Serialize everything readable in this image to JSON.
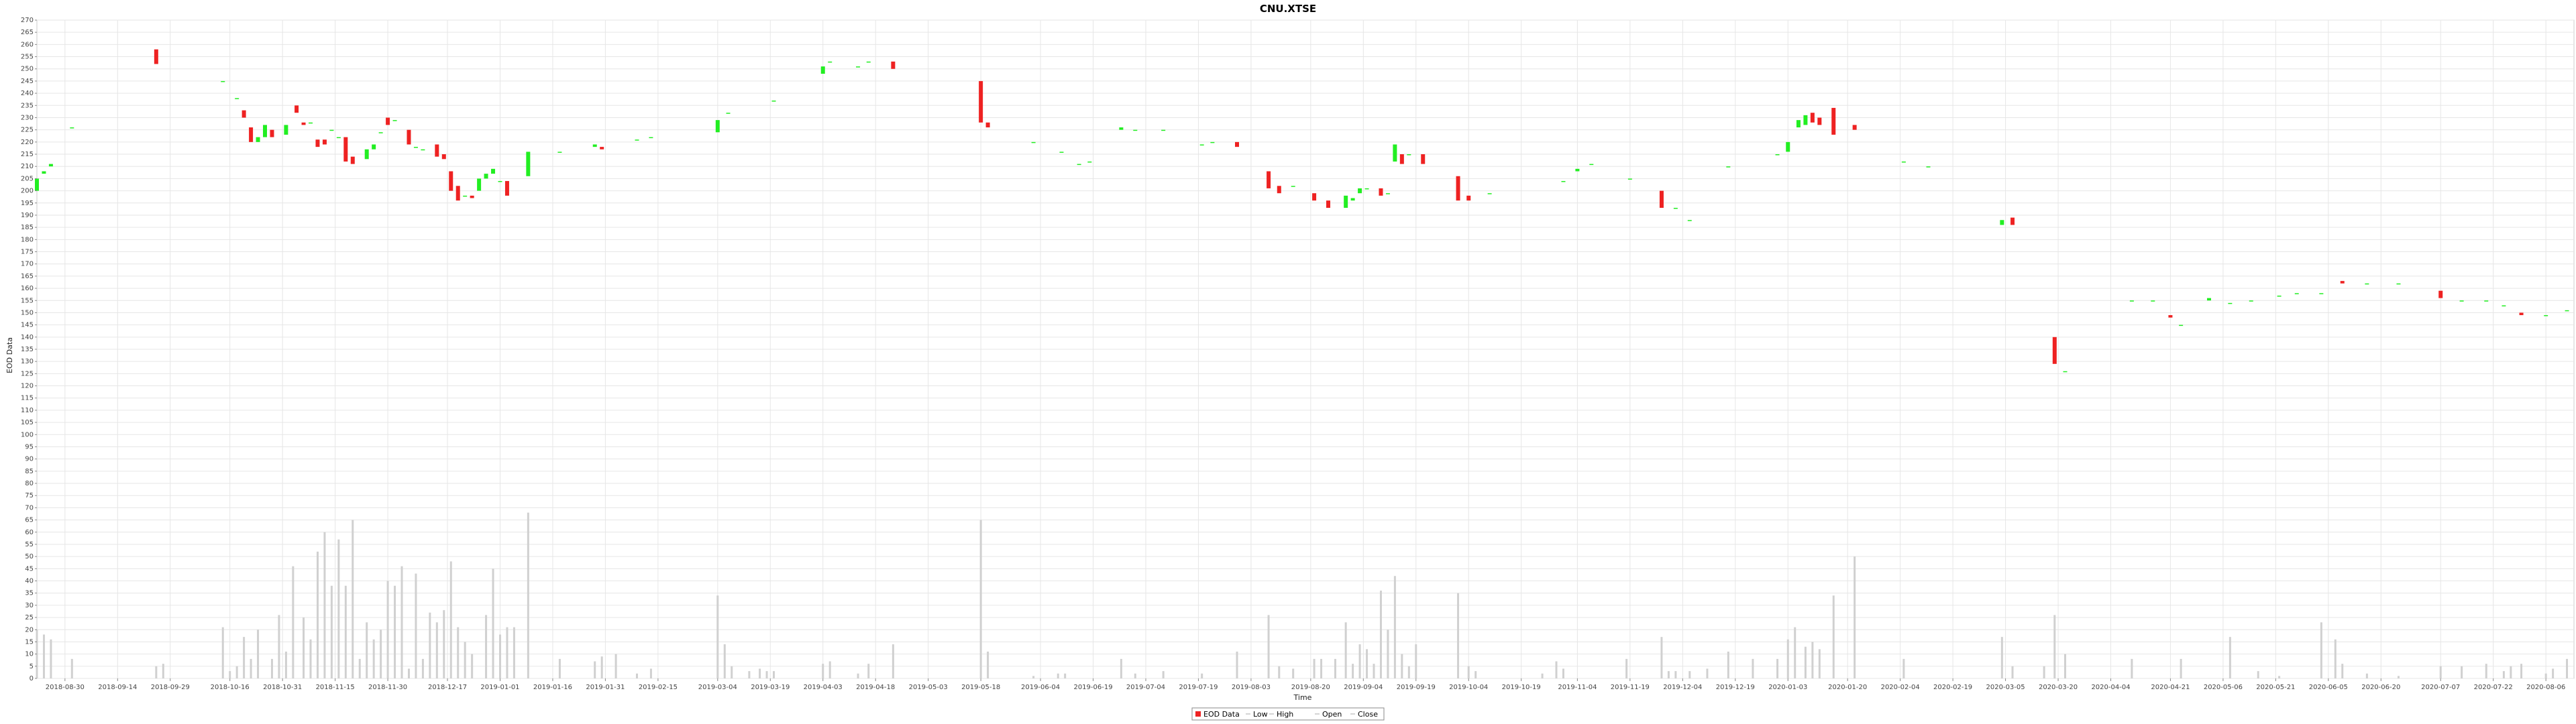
{
  "chart_data": {
    "type": "candlestick",
    "title": "CNU.XTSE",
    "xlabel": "Time",
    "ylabel": "EOD Data",
    "ylim": [
      0,
      270
    ],
    "ytick_step": 5,
    "xlim": [
      "2018-08-22",
      "2020-08-14"
    ],
    "x_ticks": [
      "2018-08-30",
      "2018-09-14",
      "2018-09-29",
      "2018-10-16",
      "2018-10-31",
      "2018-11-15",
      "2018-11-30",
      "2018-12-17",
      "2019-01-01",
      "2019-01-16",
      "2019-01-31",
      "2019-02-15",
      "2019-03-04",
      "2019-03-19",
      "2019-04-03",
      "2019-04-18",
      "2019-05-03",
      "2019-05-18",
      "2019-06-04",
      "2019-06-19",
      "2019-07-04",
      "2019-07-19",
      "2019-08-03",
      "2019-08-20",
      "2019-09-04",
      "2019-09-19",
      "2019-10-04",
      "2019-10-19",
      "2019-11-04",
      "2019-11-19",
      "2019-12-04",
      "2019-12-19",
      "2020-01-03",
      "2020-01-20",
      "2020-02-04",
      "2020-02-19",
      "2020-03-05",
      "2020-03-20",
      "2020-04-04",
      "2020-04-21",
      "2020-05-06",
      "2020-05-21",
      "2020-06-05",
      "2020-06-20",
      "2020-07-07",
      "2020-07-22",
      "2020-08-06"
    ],
    "grid": true,
    "colors": {
      "up": "#22ee22",
      "down": "#ee2222",
      "volume": "#d0d0d0",
      "grid": "#e6e6e6"
    },
    "legend": {
      "position": "bottom-center",
      "entries": [
        "EOD Data",
        "Low",
        "High",
        "Open",
        "Close"
      ]
    },
    "candles": [
      [
        "2018-08-22",
        200,
        205
      ],
      [
        "2018-08-24",
        207,
        208
      ],
      [
        "2018-08-26",
        210,
        211
      ],
      [
        "2018-09-01",
        226,
        226
      ],
      [
        "2018-09-25",
        258,
        252
      ],
      [
        "2018-10-14",
        245,
        245
      ],
      [
        "2018-10-18",
        238,
        238
      ],
      [
        "2018-10-20",
        233,
        230
      ],
      [
        "2018-10-22",
        226,
        220
      ],
      [
        "2018-10-24",
        220,
        222
      ],
      [
        "2018-10-26",
        222,
        227
      ],
      [
        "2018-10-28",
        225,
        222
      ],
      [
        "2018-11-01",
        223,
        227
      ],
      [
        "2018-11-04",
        235,
        232
      ],
      [
        "2018-11-06",
        228,
        227
      ],
      [
        "2018-11-08",
        228,
        228
      ],
      [
        "2018-11-10",
        221,
        218
      ],
      [
        "2018-11-12",
        221,
        219
      ],
      [
        "2018-11-14",
        225,
        225
      ],
      [
        "2018-11-16",
        222,
        222
      ],
      [
        "2018-11-18",
        222,
        212
      ],
      [
        "2018-11-20",
        214,
        211
      ],
      [
        "2018-11-24",
        213,
        217
      ],
      [
        "2018-11-26",
        217,
        219
      ],
      [
        "2018-11-28",
        224,
        224
      ],
      [
        "2018-11-30",
        230,
        227
      ],
      [
        "2018-12-02",
        229,
        229
      ],
      [
        "2018-12-06",
        225,
        219
      ],
      [
        "2018-12-08",
        218,
        218
      ],
      [
        "2018-12-10",
        217,
        217
      ],
      [
        "2018-12-14",
        219,
        214
      ],
      [
        "2018-12-16",
        215,
        213
      ],
      [
        "2018-12-18",
        208,
        200
      ],
      [
        "2018-12-20",
        202,
        196
      ],
      [
        "2018-12-22",
        198,
        198
      ],
      [
        "2018-12-24",
        198,
        197
      ],
      [
        "2018-12-26",
        200,
        205
      ],
      [
        "2018-12-28",
        205,
        207
      ],
      [
        "2018-12-30",
        207,
        209
      ],
      [
        "2019-01-01",
        204,
        204
      ],
      [
        "2019-01-03",
        204,
        198
      ],
      [
        "2019-01-09",
        206,
        216
      ],
      [
        "2019-01-18",
        216,
        216
      ],
      [
        "2019-01-28",
        218,
        219
      ],
      [
        "2019-01-30",
        218,
        217
      ],
      [
        "2019-02-09",
        221,
        221
      ],
      [
        "2019-02-13",
        222,
        222
      ],
      [
        "2019-03-04",
        224,
        229
      ],
      [
        "2019-03-07",
        232,
        232
      ],
      [
        "2019-03-20",
        237,
        237
      ],
      [
        "2019-04-03",
        248,
        251
      ],
      [
        "2019-04-05",
        253,
        253
      ],
      [
        "2019-04-13",
        251,
        251
      ],
      [
        "2019-04-16",
        253,
        253
      ],
      [
        "2019-04-23",
        253,
        250
      ],
      [
        "2019-05-18",
        245,
        228
      ],
      [
        "2019-05-20",
        228,
        226
      ],
      [
        "2019-06-02",
        220,
        220
      ],
      [
        "2019-06-10",
        216,
        216
      ],
      [
        "2019-06-15",
        211,
        211
      ],
      [
        "2019-06-18",
        212,
        212
      ],
      [
        "2019-06-27",
        225,
        226
      ],
      [
        "2019-07-01",
        225,
        225
      ],
      [
        "2019-07-09",
        225,
        225
      ],
      [
        "2019-07-20",
        219,
        219
      ],
      [
        "2019-07-23",
        220,
        220
      ],
      [
        "2019-07-30",
        220,
        218
      ],
      [
        "2019-08-08",
        208,
        201
      ],
      [
        "2019-08-11",
        202,
        199
      ],
      [
        "2019-08-15",
        202,
        202
      ],
      [
        "2019-08-21",
        199,
        196
      ],
      [
        "2019-08-25",
        196,
        193
      ],
      [
        "2019-08-30",
        193,
        198
      ],
      [
        "2019-09-01",
        196,
        197
      ],
      [
        "2019-09-03",
        199,
        201
      ],
      [
        "2019-09-05",
        201,
        201
      ],
      [
        "2019-09-09",
        201,
        198
      ],
      [
        "2019-09-11",
        199,
        199
      ],
      [
        "2019-09-13",
        212,
        219
      ],
      [
        "2019-09-15",
        215,
        211
      ],
      [
        "2019-09-17",
        215,
        215
      ],
      [
        "2019-09-21",
        215,
        211
      ],
      [
        "2019-10-01",
        206,
        196
      ],
      [
        "2019-10-04",
        198,
        196
      ],
      [
        "2019-10-10",
        199,
        199
      ],
      [
        "2019-10-31",
        204,
        204
      ],
      [
        "2019-11-04",
        208,
        209
      ],
      [
        "2019-11-08",
        211,
        211
      ],
      [
        "2019-11-19",
        205,
        205
      ],
      [
        "2019-11-28",
        200,
        193
      ],
      [
        "2019-12-02",
        193,
        193
      ],
      [
        "2019-12-06",
        188,
        188
      ],
      [
        "2019-12-17",
        210,
        210
      ],
      [
        "2019-12-31",
        215,
        215
      ],
      [
        "2020-01-03",
        216,
        220
      ],
      [
        "2020-01-06",
        226,
        229
      ],
      [
        "2020-01-08",
        227,
        231
      ],
      [
        "2020-01-10",
        232,
        228
      ],
      [
        "2020-01-12",
        230,
        227
      ],
      [
        "2020-01-16",
        234,
        223
      ],
      [
        "2020-01-22",
        227,
        225
      ],
      [
        "2020-02-05",
        212,
        212
      ],
      [
        "2020-02-12",
        210,
        210
      ],
      [
        "2020-03-04",
        186,
        188
      ],
      [
        "2020-03-07",
        189,
        186
      ],
      [
        "2020-03-19",
        140,
        129
      ],
      [
        "2020-03-22",
        126,
        126
      ],
      [
        "2020-04-10",
        155,
        155
      ],
      [
        "2020-04-16",
        155,
        155
      ],
      [
        "2020-04-21",
        149,
        148
      ],
      [
        "2020-04-24",
        145,
        145
      ],
      [
        "2020-05-02",
        155,
        156
      ],
      [
        "2020-05-08",
        154,
        154
      ],
      [
        "2020-05-14",
        155,
        155
      ],
      [
        "2020-05-22",
        157,
        157
      ],
      [
        "2020-05-27",
        158,
        158
      ],
      [
        "2020-06-03",
        158,
        158
      ],
      [
        "2020-06-09",
        163,
        162
      ],
      [
        "2020-06-16",
        162,
        162
      ],
      [
        "2020-06-25",
        162,
        162
      ],
      [
        "2020-07-07",
        159,
        156
      ],
      [
        "2020-07-13",
        155,
        155
      ],
      [
        "2020-07-20",
        155,
        155
      ],
      [
        "2020-07-25",
        153,
        153
      ],
      [
        "2020-07-30",
        150,
        149
      ],
      [
        "2020-08-06",
        149,
        149
      ],
      [
        "2020-08-12",
        151,
        151
      ]
    ],
    "volume": [
      [
        "2018-08-22",
        20
      ],
      [
        "2018-08-24",
        18
      ],
      [
        "2018-08-26",
        16
      ],
      [
        "2018-09-01",
        8
      ],
      [
        "2018-09-25",
        5
      ],
      [
        "2018-09-27",
        6
      ],
      [
        "2018-10-14",
        21
      ],
      [
        "2018-10-16",
        3
      ],
      [
        "2018-10-18",
        5
      ],
      [
        "2018-10-20",
        17
      ],
      [
        "2018-10-22",
        8
      ],
      [
        "2018-10-24",
        20
      ],
      [
        "2018-10-28",
        8
      ],
      [
        "2018-10-30",
        26
      ],
      [
        "2018-11-01",
        11
      ],
      [
        "2018-11-03",
        46
      ],
      [
        "2018-11-06",
        25
      ],
      [
        "2018-11-08",
        16
      ],
      [
        "2018-11-10",
        52
      ],
      [
        "2018-11-12",
        60
      ],
      [
        "2018-11-14",
        38
      ],
      [
        "2018-11-16",
        57
      ],
      [
        "2018-11-18",
        38
      ],
      [
        "2018-11-20",
        65
      ],
      [
        "2018-11-22",
        8
      ],
      [
        "2018-11-24",
        23
      ],
      [
        "2018-11-26",
        16
      ],
      [
        "2018-11-28",
        20
      ],
      [
        "2018-11-30",
        40
      ],
      [
        "2018-12-02",
        38
      ],
      [
        "2018-12-04",
        46
      ],
      [
        "2018-12-06",
        4
      ],
      [
        "2018-12-08",
        43
      ],
      [
        "2018-12-10",
        8
      ],
      [
        "2018-12-12",
        27
      ],
      [
        "2018-12-14",
        23
      ],
      [
        "2018-12-16",
        28
      ],
      [
        "2018-12-18",
        48
      ],
      [
        "2018-12-20",
        21
      ],
      [
        "2018-12-22",
        15
      ],
      [
        "2018-12-24",
        10
      ],
      [
        "2018-12-28",
        26
      ],
      [
        "2018-12-30",
        45
      ],
      [
        "2019-01-01",
        18
      ],
      [
        "2019-01-03",
        21
      ],
      [
        "2019-01-05",
        21
      ],
      [
        "2019-01-09",
        68
      ],
      [
        "2019-01-18",
        8
      ],
      [
        "2019-01-28",
        7
      ],
      [
        "2019-01-30",
        9
      ],
      [
        "2019-02-03",
        10
      ],
      [
        "2019-02-09",
        2
      ],
      [
        "2019-02-13",
        4
      ],
      [
        "2019-03-04",
        34
      ],
      [
        "2019-03-06",
        14
      ],
      [
        "2019-03-08",
        5
      ],
      [
        "2019-03-13",
        3
      ],
      [
        "2019-03-16",
        4
      ],
      [
        "2019-03-18",
        3
      ],
      [
        "2019-03-20",
        3
      ],
      [
        "2019-04-03",
        6
      ],
      [
        "2019-04-05",
        7
      ],
      [
        "2019-04-13",
        2
      ],
      [
        "2019-04-16",
        6
      ],
      [
        "2019-04-23",
        14
      ],
      [
        "2019-05-18",
        65
      ],
      [
        "2019-05-20",
        11
      ],
      [
        "2019-06-02",
        1
      ],
      [
        "2019-06-09",
        2
      ],
      [
        "2019-06-11",
        2
      ],
      [
        "2019-06-27",
        8
      ],
      [
        "2019-07-01",
        2
      ],
      [
        "2019-07-09",
        3
      ],
      [
        "2019-07-20",
        2
      ],
      [
        "2019-07-30",
        11
      ],
      [
        "2019-08-08",
        26
      ],
      [
        "2019-08-11",
        5
      ],
      [
        "2019-08-15",
        4
      ],
      [
        "2019-08-21",
        8
      ],
      [
        "2019-08-23",
        8
      ],
      [
        "2019-08-27",
        8
      ],
      [
        "2019-08-30",
        23
      ],
      [
        "2019-09-01",
        6
      ],
      [
        "2019-09-03",
        14
      ],
      [
        "2019-09-05",
        12
      ],
      [
        "2019-09-07",
        6
      ],
      [
        "2019-09-09",
        36
      ],
      [
        "2019-09-11",
        20
      ],
      [
        "2019-09-13",
        42
      ],
      [
        "2019-09-15",
        10
      ],
      [
        "2019-09-17",
        5
      ],
      [
        "2019-09-19",
        14
      ],
      [
        "2019-10-01",
        35
      ],
      [
        "2019-10-04",
        5
      ],
      [
        "2019-10-06",
        3
      ],
      [
        "2019-10-25",
        2
      ],
      [
        "2019-10-29",
        7
      ],
      [
        "2019-10-31",
        4
      ],
      [
        "2019-11-18",
        8
      ],
      [
        "2019-11-28",
        17
      ],
      [
        "2019-11-30",
        3
      ],
      [
        "2019-12-02",
        3
      ],
      [
        "2019-12-06",
        3
      ],
      [
        "2019-12-11",
        4
      ],
      [
        "2019-12-17",
        11
      ],
      [
        "2019-12-24",
        8
      ],
      [
        "2019-12-31",
        8
      ],
      [
        "2020-01-03",
        16
      ],
      [
        "2020-01-05",
        21
      ],
      [
        "2020-01-08",
        13
      ],
      [
        "2020-01-10",
        15
      ],
      [
        "2020-01-12",
        12
      ],
      [
        "2020-01-16",
        34
      ],
      [
        "2020-01-22",
        50
      ],
      [
        "2020-02-05",
        8
      ],
      [
        "2020-03-04",
        17
      ],
      [
        "2020-03-07",
        5
      ],
      [
        "2020-03-16",
        5
      ],
      [
        "2020-03-19",
        26
      ],
      [
        "2020-03-22",
        10
      ],
      [
        "2020-04-10",
        8
      ],
      [
        "2020-04-24",
        8
      ],
      [
        "2020-05-08",
        17
      ],
      [
        "2020-05-16",
        3
      ],
      [
        "2020-05-22",
        1
      ],
      [
        "2020-06-03",
        23
      ],
      [
        "2020-06-07",
        16
      ],
      [
        "2020-06-09",
        6
      ],
      [
        "2020-06-16",
        2
      ],
      [
        "2020-06-25",
        1
      ],
      [
        "2020-07-07",
        5
      ],
      [
        "2020-07-13",
        5
      ],
      [
        "2020-07-20",
        6
      ],
      [
        "2020-07-25",
        3
      ],
      [
        "2020-07-27",
        5
      ],
      [
        "2020-07-30",
        6
      ],
      [
        "2020-08-06",
        2
      ],
      [
        "2020-08-08",
        4
      ],
      [
        "2020-08-12",
        8
      ]
    ]
  }
}
